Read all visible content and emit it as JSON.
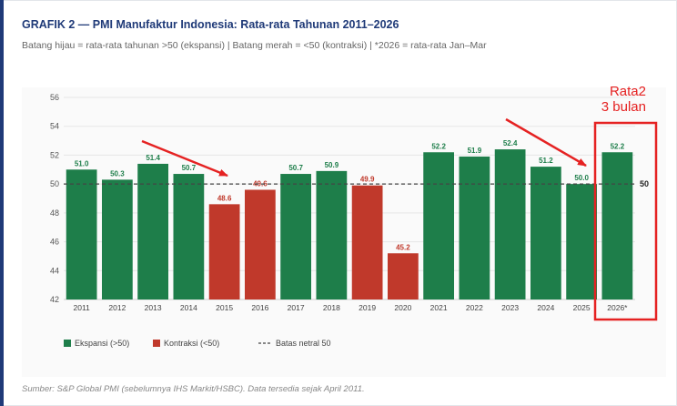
{
  "header": {
    "title": "GRAFIK 2 — PMI Manufaktur Indonesia: Rata-rata Tahunan 2011–2026",
    "subtitle": "Batang hijau = rata-rata tahunan >50 (ekspansi) | Batang merah = <50 (kontraksi) | *2026 = rata-rata Jan–Mar"
  },
  "footer": {
    "source": "Sumber: S&P Global PMI (sebelumnya IHS Markit/HSBC). Data tersedia sejak April 2011."
  },
  "annotation": {
    "line1": "Rata2",
    "line2": "3 bulan"
  },
  "colors": {
    "expansion": "#1e7e4a",
    "contraction": "#c0392b",
    "annotation": "#e52222",
    "title": "#1f3a78"
  },
  "chart_data": {
    "type": "bar",
    "title": "PMI Manufaktur Indonesia: Rata-rata Tahunan 2011–2026",
    "categories": [
      "2011",
      "2012",
      "2013",
      "2014",
      "2015",
      "2016",
      "2017",
      "2018",
      "2019",
      "2020",
      "2021",
      "2022",
      "2023",
      "2024",
      "2025",
      "2026*"
    ],
    "values": [
      51.0,
      50.3,
      51.4,
      50.7,
      48.6,
      49.6,
      50.7,
      50.9,
      49.9,
      45.2,
      52.2,
      51.9,
      52.4,
      51.2,
      50.0,
      52.2
    ],
    "value_labels": [
      "51.0",
      "50.3",
      "51.4",
      "50.7",
      "48.6",
      "49.6",
      "50.7",
      "50.9",
      "49.9",
      "45.2",
      "52.2",
      "51.9",
      "52.4",
      "51.2",
      "50.0",
      "52.2"
    ],
    "ylim": [
      42,
      56
    ],
    "yticks": [
      "42",
      "44",
      "46",
      "48",
      "50",
      "52",
      "54",
      "56"
    ],
    "reference_line": {
      "value": 50,
      "label": "50"
    },
    "legend": [
      {
        "label": "Ekspansi (>50)",
        "kind": "expansion"
      },
      {
        "label": "Kontraksi (<50)",
        "kind": "contraction"
      },
      {
        "label": "Batas netral 50",
        "kind": "neutral"
      }
    ],
    "legend_position": "bottom-left",
    "grid": true,
    "xlabel": "",
    "ylabel": ""
  }
}
